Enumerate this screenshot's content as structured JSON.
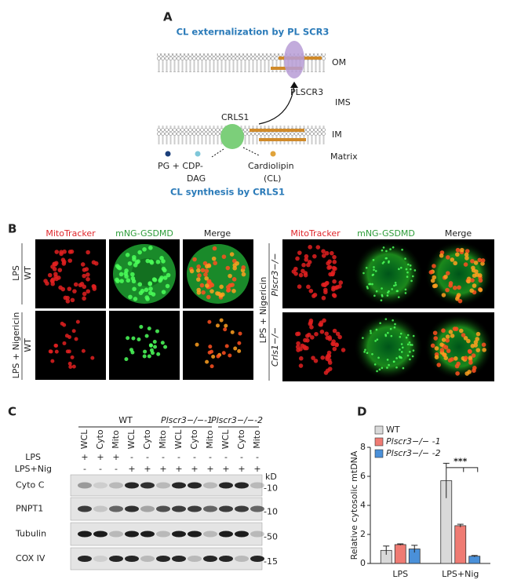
{
  "panel_a": {
    "label": "A",
    "title_top": "CL externalization by PL SCR3",
    "om": "OM",
    "plscr3": "PLSCR3",
    "ims": "IMS",
    "crls1": "CRLS1",
    "im": "IM",
    "pg_line1": "PG + CDP-",
    "pg_line2": "DAG",
    "cl_line1": "Cardiolipin",
    "cl_line2": "(CL)",
    "matrix": "Matrix",
    "title_bottom": "CL synthesis by CRLS1"
  },
  "panel_b": {
    "label": "B",
    "columns": [
      "MitoTracker",
      "mNG-GSDMD",
      "Merge"
    ],
    "left_rows": [
      {
        "treatment": "LPS",
        "genotype": "WT"
      },
      {
        "treatment": "LPS + Nigericin",
        "genotype": "WT"
      }
    ],
    "right_treatment": "LPS + Nigericin",
    "right_rows": [
      "Plscr3−/−",
      "Crls1−/−"
    ]
  },
  "panel_c": {
    "label": "C",
    "groups": [
      "WT",
      "Plscr3−/−-1",
      "Plscr3−/−-2"
    ],
    "lanes": [
      "WCL",
      "Cyto",
      "Mito",
      "WCL",
      "Cyto",
      "Mito",
      "WCL",
      "Cyto",
      "Mito",
      "WCL",
      "Cyto",
      "Mito"
    ],
    "lps_label": "LPS",
    "lps": [
      "+",
      "+",
      "+",
      "-",
      "-",
      "-",
      "-",
      "-",
      "-",
      "-",
      "-",
      "-"
    ],
    "nig_label": "LPS+Nig",
    "nig": [
      "-",
      "-",
      "-",
      "+",
      "+",
      "+",
      "+",
      "+",
      "+",
      "+",
      "+",
      "+"
    ],
    "blots": [
      "Cyto C",
      "PNPT1",
      "Tubulin",
      "COX IV"
    ],
    "kd_label": "kD",
    "kd_markers": [
      "-10",
      "-10",
      "-50",
      "-15"
    ]
  },
  "panel_d": {
    "label": "D",
    "chart_data": {
      "type": "bar",
      "y_label": "Relative cytosolic mtDNA",
      "categories": [
        "LPS",
        "LPS+Nig"
      ],
      "series": [
        {
          "name": "WT",
          "color": "#d9d9d9",
          "values": [
            0.9,
            5.7
          ],
          "errors": [
            0.3,
            1.2
          ]
        },
        {
          "name": "Plscr3−/− -1",
          "color": "#ef7b73",
          "values": [
            1.3,
            2.6
          ],
          "errors": [
            0.05,
            0.1
          ]
        },
        {
          "name": "Plscr3−/− -2",
          "color": "#4a90d9",
          "values": [
            1.0,
            0.5
          ],
          "errors": [
            0.25,
            0.05
          ]
        }
      ],
      "ylim": [
        0,
        8
      ],
      "yticks": [
        0,
        2,
        4,
        6,
        8
      ],
      "annotation": "***"
    }
  }
}
